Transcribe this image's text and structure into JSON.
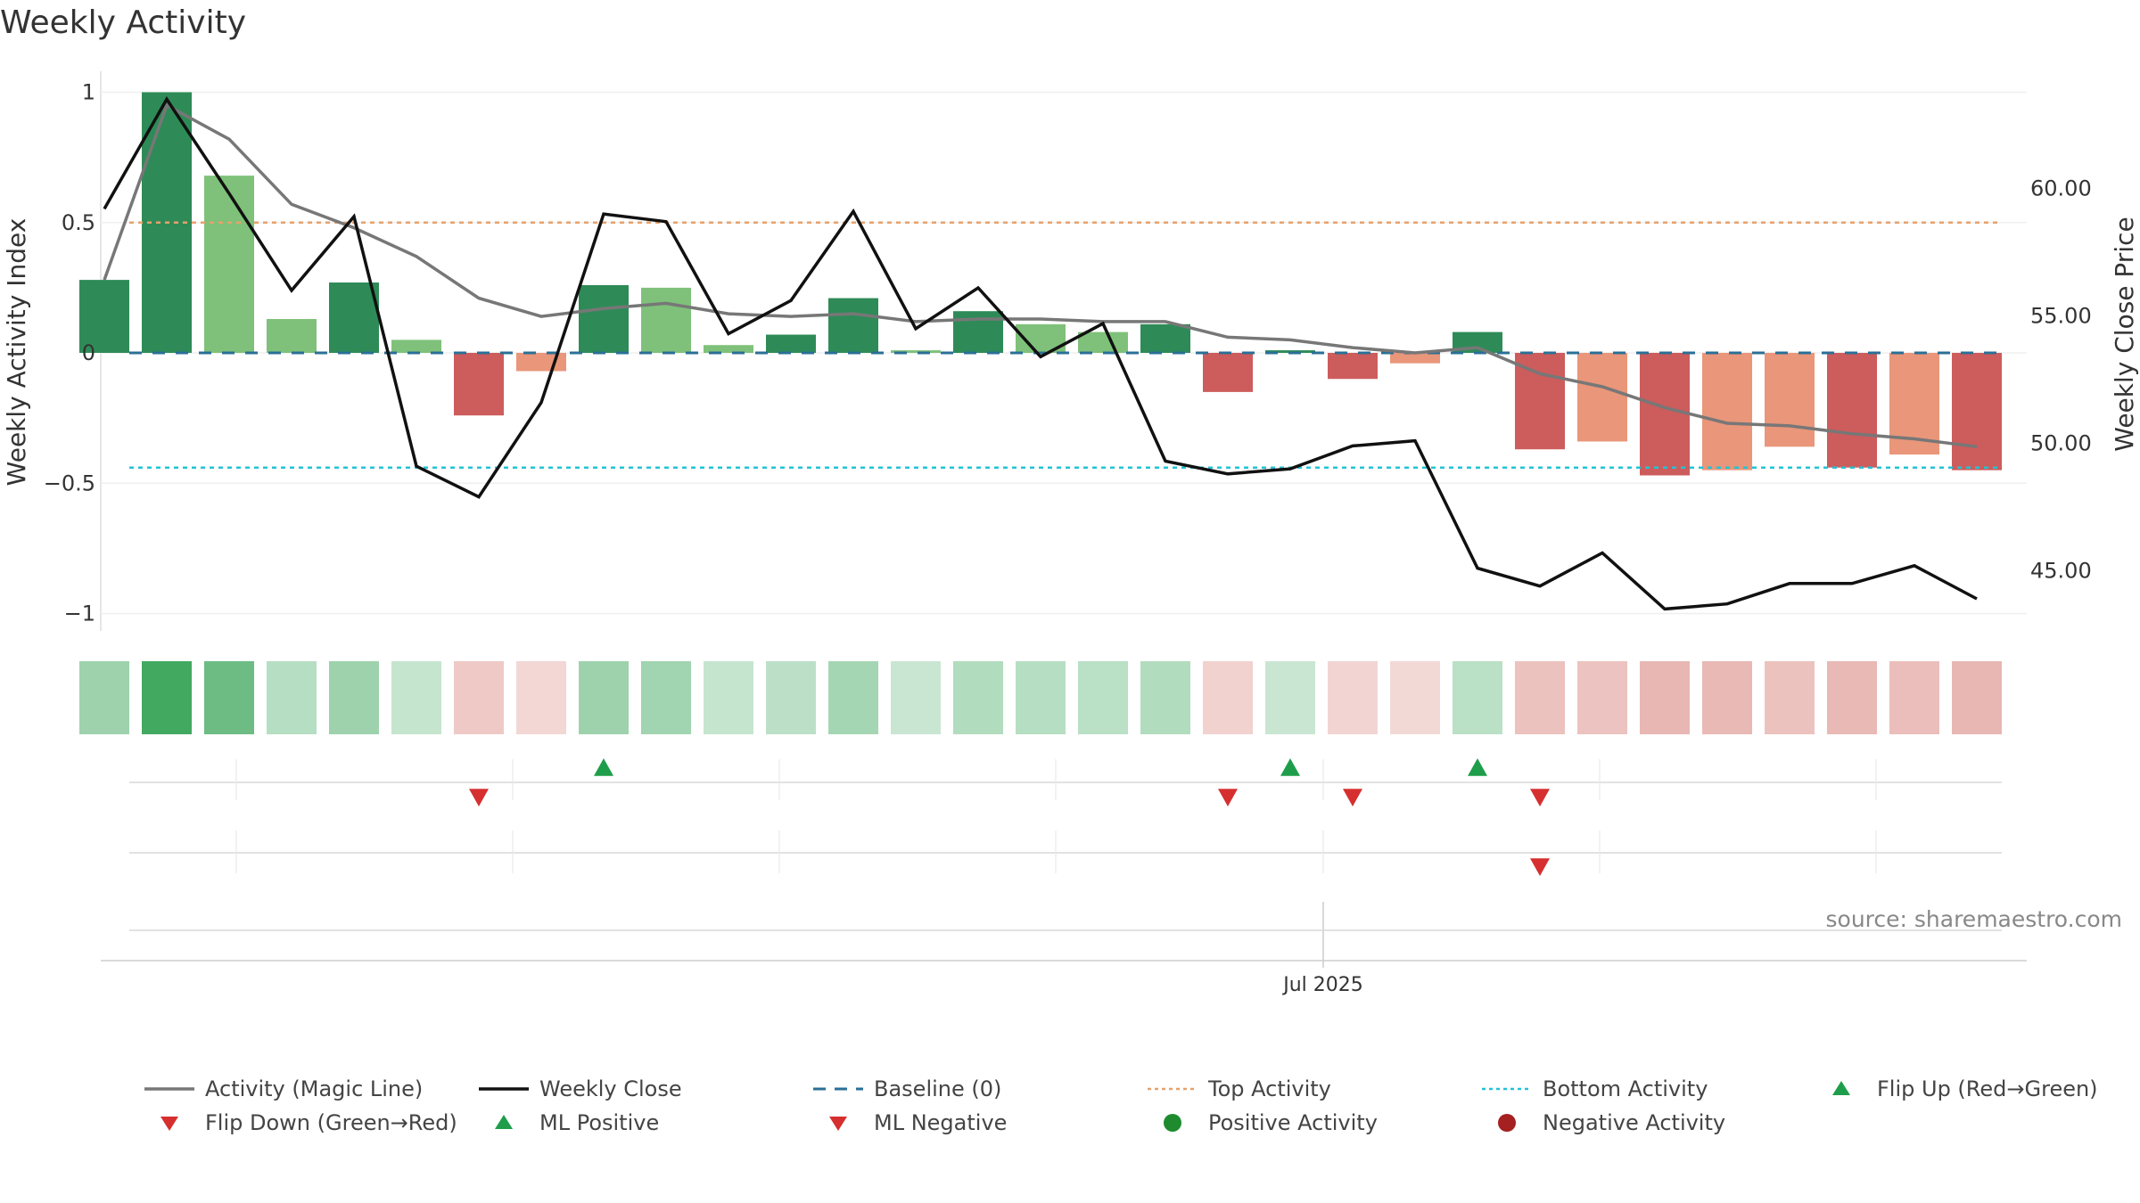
{
  "title": "Weekly Activity",
  "source": "source: sharemaestro.com",
  "chart_data": {
    "type": "bar",
    "title": "Weekly Activity",
    "ylabel_left": "Weekly Activity Index",
    "ylabel_right": "Weekly Close Price",
    "ylim_left": [
      -1.07,
      1.07
    ],
    "ylim_right": [
      42.0,
      63.6
    ],
    "yticks_left": [
      {
        "v": 1,
        "label": "1"
      },
      {
        "v": 0.5,
        "label": "0.5"
      },
      {
        "v": 0,
        "label": "0"
      },
      {
        "v": -0.5,
        "label": "−0.5"
      },
      {
        "v": -1,
        "label": "−1"
      }
    ],
    "yticks_right": [
      {
        "v": 60,
        "label": "60.00"
      },
      {
        "v": 55,
        "label": "55.00"
      },
      {
        "v": 50,
        "label": "50.00"
      },
      {
        "v": 45,
        "label": "45.00"
      }
    ],
    "xtick_label": "Jul 2025",
    "xtick_index": 19,
    "top_activity": 0.5,
    "bottom_activity": -0.44,
    "baseline": 0,
    "activity": [
      0.28,
      1.0,
      0.68,
      0.13,
      0.27,
      0.05,
      -0.24,
      -0.07,
      0.26,
      0.25,
      0.03,
      0.07,
      0.21,
      0.01,
      0.16,
      0.11,
      0.08,
      0.11,
      -0.15,
      0.01,
      -0.1,
      -0.04,
      0.08,
      -0.37,
      -0.34,
      -0.47,
      -0.45,
      -0.36,
      -0.44,
      -0.39,
      -0.45
    ],
    "bar_shade": [
      "dark",
      "dark",
      "light",
      "light",
      "dark",
      "light",
      "dark",
      "light",
      "dark",
      "light",
      "light",
      "dark",
      "dark",
      "light",
      "dark",
      "light",
      "light",
      "dark",
      "dark",
      "dark",
      "dark",
      "light",
      "dark",
      "dark",
      "light",
      "dark",
      "light",
      "light",
      "dark",
      "light",
      "dark"
    ],
    "magic_line": [
      0.28,
      0.95,
      0.82,
      0.57,
      0.48,
      0.37,
      0.21,
      0.14,
      0.17,
      0.19,
      0.15,
      0.14,
      0.15,
      0.12,
      0.13,
      0.13,
      0.12,
      0.12,
      0.06,
      0.05,
      0.02,
      0.0,
      0.02,
      -0.08,
      -0.13,
      -0.21,
      -0.27,
      -0.28,
      -0.31,
      -0.33,
      -0.36
    ],
    "weekly_close": [
      59.2,
      63.5,
      59.8,
      56.0,
      58.9,
      49.1,
      47.9,
      51.6,
      59.0,
      58.7,
      54.3,
      55.6,
      59.1,
      54.5,
      56.1,
      53.4,
      54.7,
      49.3,
      48.8,
      49.0,
      49.9,
      50.1,
      45.1,
      44.4,
      45.7,
      43.5,
      43.7,
      44.5,
      44.5,
      45.2,
      43.9
    ],
    "strip_intensity": [
      0.45,
      1.0,
      0.75,
      0.3,
      0.45,
      0.2,
      0.35,
      0.2,
      0.45,
      0.42,
      0.2,
      0.25,
      0.4,
      0.18,
      0.32,
      0.3,
      0.27,
      0.32,
      0.25,
      0.18,
      0.22,
      0.18,
      0.27,
      0.42,
      0.4,
      0.52,
      0.5,
      0.42,
      0.5,
      0.45,
      0.52
    ],
    "flip_up_idx": [
      8,
      19,
      22
    ],
    "flip_down_idx": [
      6,
      18,
      20,
      23
    ],
    "ml_negative_idx": [
      23
    ],
    "legend": [
      {
        "label": "Activity (Magic Line)",
        "kind": "line",
        "color": "#777777"
      },
      {
        "label": "Weekly Close",
        "kind": "line",
        "color": "#111111"
      },
      {
        "label": "Baseline (0)",
        "kind": "dash",
        "color": "#2a6f97"
      },
      {
        "label": "Top Activity",
        "kind": "dot",
        "color": "#e7a16b"
      },
      {
        "label": "Bottom Activity",
        "kind": "dot",
        "color": "#22c3d6"
      },
      {
        "label": "Flip Up (Red→Green)",
        "kind": "tri-up",
        "color": "#1e9e4a"
      },
      {
        "label": "Flip Down (Green→Red)",
        "kind": "tri-down",
        "color": "#d62f2f"
      },
      {
        "label": "ML Positive",
        "kind": "tri-up",
        "color": "#1e9e4a"
      },
      {
        "label": "ML Negative",
        "kind": "tri-down",
        "color": "#d62f2f"
      },
      {
        "label": "Positive Activity",
        "kind": "circle",
        "color": "#1e8c2e"
      },
      {
        "label": "Negative Activity",
        "kind": "circle",
        "color": "#a52020"
      }
    ]
  },
  "colors": {
    "green_dark": "#2e8b57",
    "green_light": "#7fc17a",
    "red_dark": "#cd5c5c",
    "red_light": "#e9967a",
    "baseline": "#2a6f97",
    "top_line": "#e7a16b",
    "bottom_line": "#22c3d6",
    "magic_line": "#777777",
    "close_line": "#111111"
  }
}
